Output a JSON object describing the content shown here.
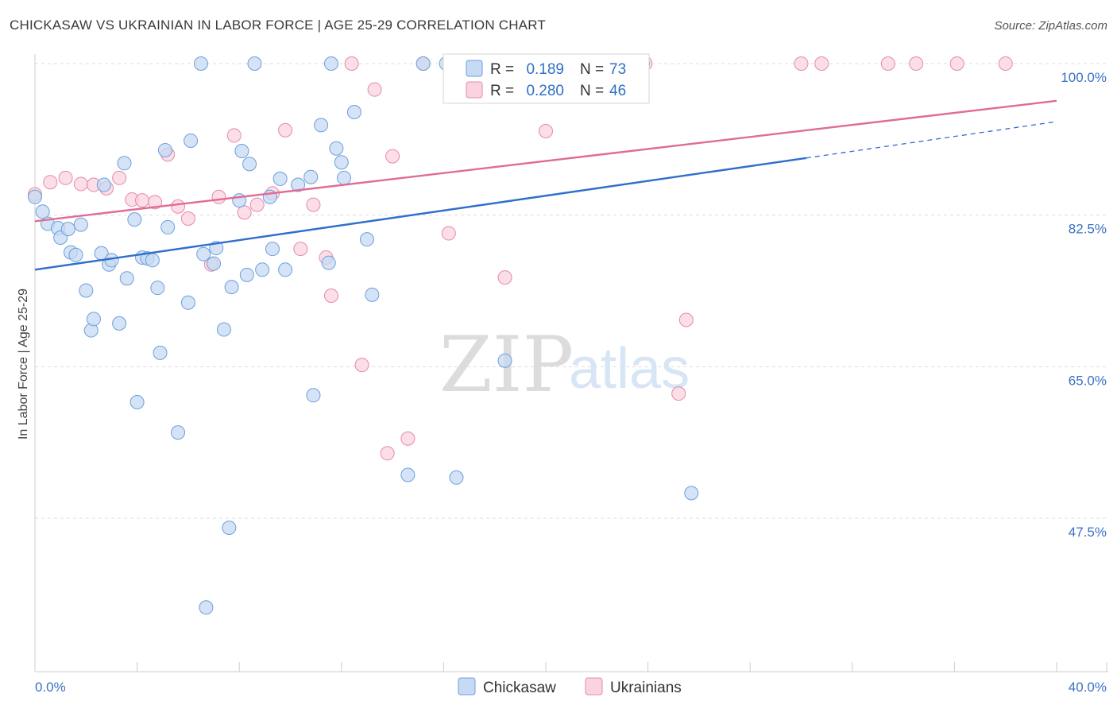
{
  "header": {
    "title": "CHICKASAW VS UKRAINIAN IN LABOR FORCE | AGE 25-29 CORRELATION CHART",
    "source": "Source: ZipAtlas.com"
  },
  "watermark": {
    "zip": "ZIP",
    "atlas": "atlas"
  },
  "legend": {
    "r_label": "R =",
    "n_label": "N =",
    "rows": [
      {
        "r": "0.189",
        "n": "73",
        "color": "#a9c8ee"
      },
      {
        "r": "0.280",
        "n": "46",
        "color": "#f6b8cb"
      }
    ]
  },
  "bottom_legend": [
    {
      "label": "Chickasaw",
      "color": "#a9c8ee"
    },
    {
      "label": "Ukrainians",
      "color": "#f6b8cb"
    }
  ],
  "colors": {
    "blue_point_fill": "#c6daf3",
    "blue_point_stroke": "#6d9fdc",
    "blue_line": "#2f6fcc",
    "pink_point_fill": "#f9d3df",
    "pink_point_stroke": "#e58aa9",
    "pink_line": "#e06b96",
    "grid": "#dddddd",
    "tick_text": "#3a72c4"
  },
  "chart_data": {
    "type": "scatter",
    "title": "CHICKASAW VS UKRAINIAN IN LABOR FORCE | AGE 25-29 CORRELATION CHART",
    "xlabel": "",
    "ylabel": "In Labor Force | Age 25-29",
    "xlim": [
      0,
      40
    ],
    "ylim": [
      31,
      102
    ],
    "x_tick_labels": [
      "0.0%",
      "40.0%"
    ],
    "y_ticks": [
      47.5,
      65.0,
      82.5,
      100.0
    ],
    "y_tick_labels": [
      "47.5%",
      "65.0%",
      "82.5%",
      "100.0%"
    ],
    "grid": true,
    "legend_position": "top-center",
    "series": [
      {
        "name": "Chickasaw",
        "r": 0.189,
        "n": 73,
        "trend": {
          "x": [
            0,
            30.2
          ],
          "y": [
            76.2,
            89.1
          ]
        },
        "trend_dashed": {
          "x": [
            30.2,
            40
          ],
          "y": [
            89.1,
            93.3
          ]
        },
        "points": [
          [
            0.0,
            84.6
          ],
          [
            0.3,
            82.9
          ],
          [
            0.5,
            81.5
          ],
          [
            0.9,
            81.0
          ],
          [
            1.0,
            79.9
          ],
          [
            1.3,
            80.9
          ],
          [
            1.4,
            78.2
          ],
          [
            1.6,
            77.9
          ],
          [
            1.8,
            81.4
          ],
          [
            2.0,
            73.8
          ],
          [
            2.2,
            69.2
          ],
          [
            2.3,
            70.5
          ],
          [
            2.6,
            78.1
          ],
          [
            2.7,
            86.0
          ],
          [
            2.9,
            76.8
          ],
          [
            3.0,
            77.3
          ],
          [
            3.3,
            70.0
          ],
          [
            3.5,
            88.5
          ],
          [
            3.6,
            75.2
          ],
          [
            3.9,
            82.0
          ],
          [
            4.0,
            60.9
          ],
          [
            4.2,
            77.6
          ],
          [
            4.4,
            77.5
          ],
          [
            4.6,
            77.3
          ],
          [
            4.8,
            74.1
          ],
          [
            4.9,
            66.6
          ],
          [
            5.1,
            90.0
          ],
          [
            5.2,
            81.1
          ],
          [
            5.6,
            57.4
          ],
          [
            6.0,
            72.4
          ],
          [
            6.1,
            91.1
          ],
          [
            6.5,
            100.0
          ],
          [
            6.6,
            78.0
          ],
          [
            6.7,
            37.2
          ],
          [
            7.0,
            76.9
          ],
          [
            7.1,
            78.7
          ],
          [
            7.4,
            69.3
          ],
          [
            7.6,
            46.4
          ],
          [
            7.7,
            74.2
          ],
          [
            8.0,
            84.2
          ],
          [
            8.1,
            89.9
          ],
          [
            8.3,
            75.6
          ],
          [
            8.4,
            88.4
          ],
          [
            8.6,
            100.0
          ],
          [
            8.9,
            76.2
          ],
          [
            9.2,
            84.6
          ],
          [
            9.3,
            78.6
          ],
          [
            9.6,
            86.7
          ],
          [
            9.8,
            76.2
          ],
          [
            10.3,
            86.0
          ],
          [
            10.8,
            86.9
          ],
          [
            10.9,
            61.7
          ],
          [
            11.2,
            92.9
          ],
          [
            11.5,
            77.0
          ],
          [
            11.6,
            100.0
          ],
          [
            11.8,
            90.2
          ],
          [
            12.0,
            88.6
          ],
          [
            12.1,
            86.8
          ],
          [
            12.5,
            94.4
          ],
          [
            13.0,
            79.7
          ],
          [
            13.2,
            73.3
          ],
          [
            14.6,
            52.5
          ],
          [
            15.2,
            100.0
          ],
          [
            16.1,
            100.0
          ],
          [
            16.5,
            52.2
          ],
          [
            16.8,
            100.0
          ],
          [
            18.0,
            100.0
          ],
          [
            18.4,
            65.7
          ],
          [
            21.0,
            100.0
          ],
          [
            21.5,
            100.0
          ],
          [
            23.0,
            100.0
          ],
          [
            23.8,
            100.0
          ],
          [
            25.7,
            50.4
          ]
        ]
      },
      {
        "name": "Ukrainians",
        "r": 0.28,
        "n": 46,
        "trend": {
          "x": [
            0,
            40
          ],
          "y": [
            81.8,
            95.7
          ]
        },
        "points": [
          [
            0.0,
            84.9
          ],
          [
            0.6,
            86.3
          ],
          [
            1.2,
            86.8
          ],
          [
            1.8,
            86.1
          ],
          [
            2.3,
            86.0
          ],
          [
            2.8,
            85.6
          ],
          [
            3.3,
            86.8
          ],
          [
            3.8,
            84.3
          ],
          [
            4.2,
            84.2
          ],
          [
            4.7,
            84.0
          ],
          [
            5.2,
            89.5
          ],
          [
            5.6,
            83.5
          ],
          [
            6.0,
            82.1
          ],
          [
            6.9,
            76.8
          ],
          [
            7.2,
            84.6
          ],
          [
            7.8,
            91.7
          ],
          [
            8.2,
            82.8
          ],
          [
            8.7,
            83.7
          ],
          [
            9.3,
            85.0
          ],
          [
            9.8,
            92.3
          ],
          [
            10.4,
            78.6
          ],
          [
            10.9,
            83.7
          ],
          [
            11.4,
            77.6
          ],
          [
            11.6,
            73.2
          ],
          [
            12.4,
            100.0
          ],
          [
            12.8,
            65.2
          ],
          [
            13.3,
            97.0
          ],
          [
            13.8,
            55.0
          ],
          [
            14.0,
            89.3
          ],
          [
            14.6,
            56.7
          ],
          [
            15.2,
            100.0
          ],
          [
            16.2,
            80.4
          ],
          [
            17.0,
            100.0
          ],
          [
            18.0,
            100.0
          ],
          [
            18.4,
            75.3
          ],
          [
            20.0,
            92.2
          ],
          [
            23.2,
            100.0
          ],
          [
            23.9,
            100.0
          ],
          [
            25.2,
            61.9
          ],
          [
            25.5,
            70.4
          ],
          [
            30.0,
            100.0
          ],
          [
            30.8,
            100.0
          ],
          [
            33.4,
            100.0
          ],
          [
            34.5,
            100.0
          ],
          [
            36.1,
            100.0
          ],
          [
            38.0,
            100.0
          ]
        ]
      }
    ]
  }
}
